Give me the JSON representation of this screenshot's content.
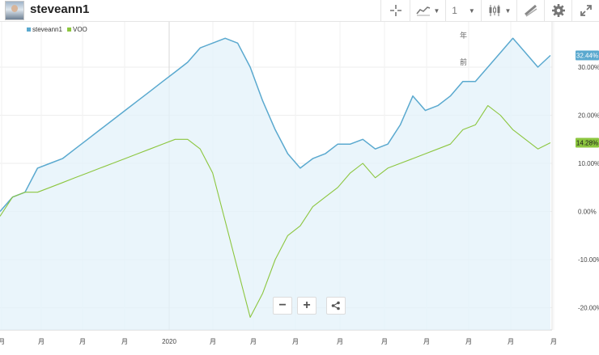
{
  "header": {
    "username": "steveann1",
    "interval": "1"
  },
  "legend": [
    {
      "label": "steveann1",
      "color": "#5aa9cf"
    },
    {
      "label": "VOO",
      "color": "#8cc63f"
    }
  ],
  "annotation": [
    "年",
    "前"
  ],
  "zoom": {
    "minus": "−",
    "plus": "+"
  },
  "chart_data": {
    "type": "line",
    "x_tick_labels": [
      "月",
      "月",
      "月",
      "月",
      "2020",
      "月",
      "月",
      "月",
      "月",
      "月",
      "月",
      "月",
      "月",
      "月"
    ],
    "y_tick_labels": [
      "30.00%",
      "20.00%",
      "10.00%",
      "0.00%",
      "-10.00%",
      "-20.00%"
    ],
    "ylim": [
      -23,
      37
    ],
    "grid": true,
    "legend_position": "top-left",
    "series": [
      {
        "name": "steveann1",
        "color": "#5aa9cf",
        "fill": true,
        "last_label": "32.44%",
        "values": [
          0,
          3,
          4,
          9,
          10,
          11,
          13,
          15,
          17,
          19,
          21,
          23,
          25,
          27,
          29,
          31,
          34,
          35,
          36,
          35,
          30,
          23,
          17,
          12,
          9,
          11,
          12,
          14,
          14,
          15,
          13,
          14,
          18,
          24,
          21,
          22,
          24,
          27,
          27,
          30,
          33,
          36,
          33,
          30,
          32.44
        ]
      },
      {
        "name": "VOO",
        "color": "#8cc63f",
        "fill": false,
        "last_label": "14.28%",
        "values": [
          -1,
          3,
          4,
          4,
          5,
          6,
          7,
          8,
          9,
          10,
          11,
          12,
          13,
          14,
          15,
          15,
          13,
          8,
          -2,
          -12,
          -22,
          -17,
          -10,
          -5,
          -3,
          1,
          3,
          5,
          8,
          10,
          7,
          9,
          10,
          11,
          12,
          13,
          14,
          17,
          18,
          22,
          20,
          17,
          15,
          13,
          14.28
        ]
      }
    ]
  }
}
